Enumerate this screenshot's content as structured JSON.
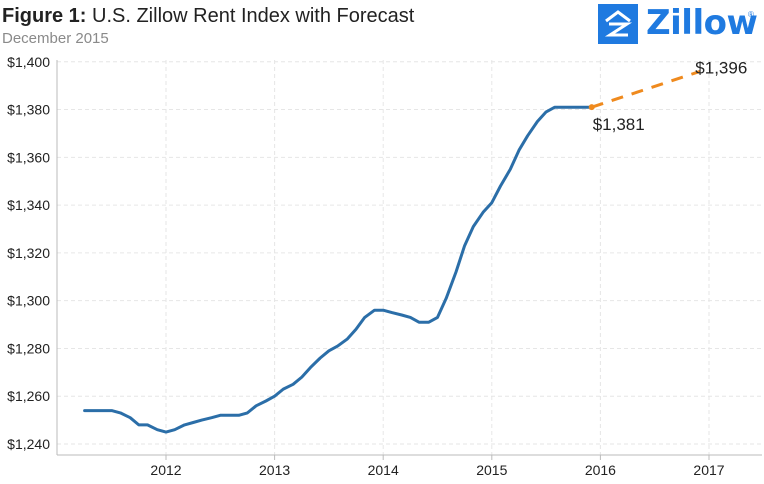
{
  "header": {
    "title_prefix": "Figure 1:",
    "title_text": "U.S. Zillow Rent Index with Forecast",
    "subtitle": "December 2015"
  },
  "logo": {
    "word": "Zillow",
    "registered": "®",
    "icon": "zillow-house-icon",
    "color": "#1f7ae0"
  },
  "chart_data": {
    "type": "line",
    "ylim": [
      1240,
      1405
    ],
    "xlim": [
      2011.1,
      2017.5
    ],
    "yticks": [
      1240,
      1260,
      1280,
      1300,
      1320,
      1340,
      1360,
      1380,
      1400
    ],
    "ytick_labels": [
      "$1,240",
      "$1,260",
      "$1,280",
      "$1,300",
      "$1,320",
      "$1,340",
      "$1,360",
      "$1,380",
      "$1,400"
    ],
    "xticks": [
      2012,
      2013,
      2014,
      2015,
      2016,
      2017
    ],
    "xtick_labels": [
      "2012",
      "2013",
      "2014",
      "2015",
      "2016",
      "2017"
    ],
    "grid": true,
    "series": [
      {
        "color": "#2b6ea8",
        "style": "solid",
        "x": [
          2011.25,
          2011.33,
          2011.42,
          2011.5,
          2011.58,
          2011.67,
          2011.75,
          2011.83,
          2011.92,
          2012.0,
          2012.08,
          2012.17,
          2012.25,
          2012.33,
          2012.42,
          2012.5,
          2012.58,
          2012.67,
          2012.75,
          2012.83,
          2012.92,
          2013.0,
          2013.08,
          2013.17,
          2013.25,
          2013.33,
          2013.42,
          2013.5,
          2013.58,
          2013.67,
          2013.75,
          2013.83,
          2013.92,
          2014.0,
          2014.08,
          2014.17,
          2014.25,
          2014.33,
          2014.42,
          2014.5,
          2014.58,
          2014.67,
          2014.75,
          2014.83,
          2014.92,
          2015.0,
          2015.08,
          2015.17,
          2015.25,
          2015.33,
          2015.42,
          2015.5,
          2015.58,
          2015.67,
          2015.75,
          2015.83,
          2015.92
        ],
        "y": [
          1254,
          1254,
          1254,
          1254,
          1253,
          1251,
          1248,
          1248,
          1246,
          1245,
          1246,
          1248,
          1249,
          1250,
          1251,
          1252,
          1252,
          1252,
          1253,
          1256,
          1258,
          1260,
          1263,
          1265,
          1268,
          1272,
          1276,
          1279,
          1281,
          1284,
          1288,
          1293,
          1296,
          1296,
          1295,
          1294,
          1293,
          1291,
          1291,
          1293,
          1301,
          1312,
          1323,
          1331,
          1337,
          1341,
          1348,
          1355,
          1363,
          1369,
          1375,
          1379,
          1381,
          1381,
          1381,
          1381,
          1381
        ]
      },
      {
        "color": "#ef8a1e",
        "style": "dashed",
        "x": [
          2015.92,
          2016.92
        ],
        "y": [
          1381,
          1396
        ]
      }
    ],
    "annotations": [
      {
        "text": "$1,381",
        "x": 2015.92,
        "y": 1381
      },
      {
        "text": "$1,396",
        "x": 2016.92,
        "y": 1396
      }
    ]
  }
}
